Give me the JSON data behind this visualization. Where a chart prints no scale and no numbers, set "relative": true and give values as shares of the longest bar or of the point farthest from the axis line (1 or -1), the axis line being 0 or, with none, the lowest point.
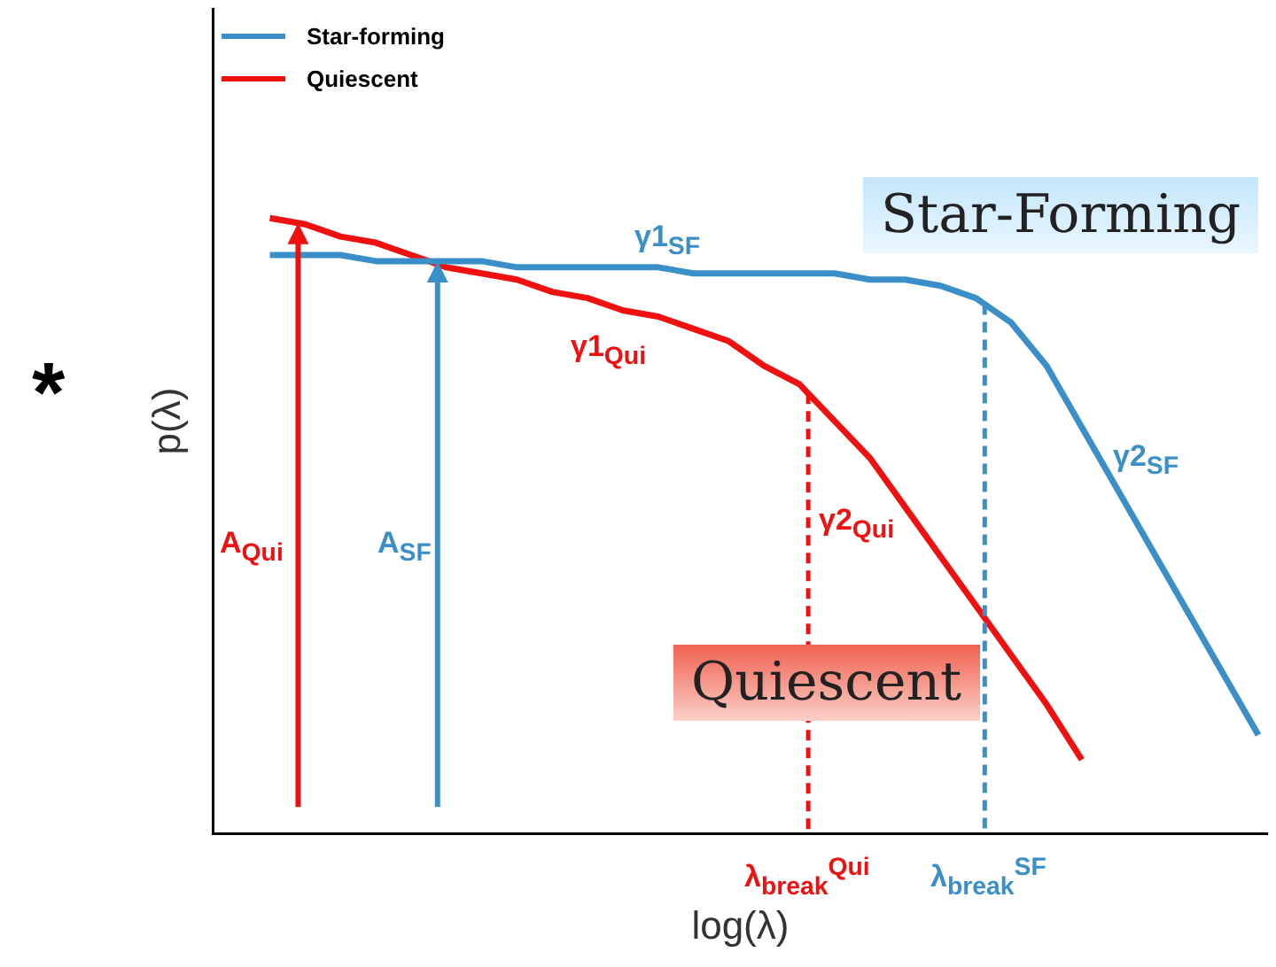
{
  "chart_data": {
    "type": "line",
    "relative": true,
    "tick_labels": false,
    "grid": false,
    "legend": "top left",
    "marker": "none",
    "line_style": "solid",
    "xlabel": "log(λ)",
    "ylabel": "p(λ)",
    "categories": [
      null,
      null,
      null,
      null,
      null,
      null,
      null,
      null,
      null,
      null,
      null,
      null,
      null,
      null,
      null,
      null,
      null,
      null,
      null,
      null,
      null,
      null,
      null,
      null,
      null,
      null,
      null,
      null,
      null
    ],
    "series": [
      {
        "name": "Star-forming",
        "color": "#3a8fc8",
        "values": [
          0.94,
          0.94,
          0.94,
          0.93,
          0.93,
          0.93,
          0.93,
          0.92,
          0.92,
          0.92,
          0.92,
          0.92,
          0.91,
          0.91,
          0.91,
          0.91,
          0.91,
          0.9,
          0.9,
          0.89,
          0.87,
          0.83,
          0.76,
          0.66,
          0.56,
          0.46,
          0.36,
          0.26,
          0.16
        ]
      },
      {
        "name": "Quiescent",
        "color": "#f01010",
        "values": [
          1.0,
          0.99,
          0.97,
          0.96,
          0.94,
          0.92,
          0.91,
          0.9,
          0.88,
          0.87,
          0.85,
          0.84,
          0.82,
          0.8,
          0.76,
          0.73,
          0.67,
          0.61,
          0.53,
          0.45,
          0.37,
          0.29,
          0.21,
          0.12,
          null,
          null,
          null,
          null,
          null
        ]
      }
    ],
    "annotations": [
      "Star-Forming",
      "Quiescent",
      "γ1$_{SF}$",
      "γ1$_{Qui}$",
      "γ2$_{Qui}$",
      "γ2$_{SF}$",
      "A$_{Qui}$",
      "A$_{SF}$",
      "λ$_{break}$$^{Qui}$",
      "λ$_{break}$$^{SF}$",
      "*"
    ]
  }
}
